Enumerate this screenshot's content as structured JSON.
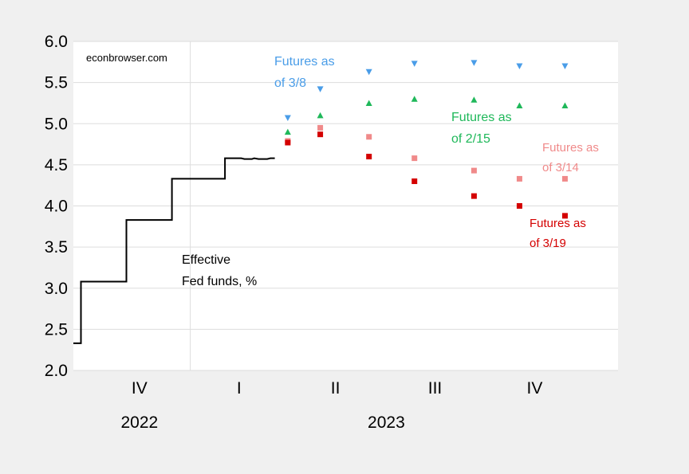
{
  "chart_data": {
    "type": "scatter",
    "title": "",
    "xlabel": "",
    "ylabel": "",
    "ylim": [
      2.0,
      6.0
    ],
    "yticks": [
      "2.0",
      "2.5",
      "3.0",
      "3.5",
      "4.0",
      "4.5",
      "5.0",
      "5.5",
      "6.0"
    ],
    "xlim": [
      "2022-09-15",
      "2024-01-31"
    ],
    "quarter_ticks": [
      {
        "label": "IV",
        "x": "2022-11-15"
      },
      {
        "label": "I",
        "x": "2023-02-15"
      },
      {
        "label": "II",
        "x": "2023-05-15"
      },
      {
        "label": "III",
        "x": "2023-08-15"
      },
      {
        "label": "IV",
        "x": "2023-11-15"
      }
    ],
    "year_labels": [
      {
        "label": "2022",
        "x": "2022-11-15"
      },
      {
        "label": "2023",
        "x": "2023-07-01"
      }
    ],
    "gridlines": true,
    "colors": {
      "effective": "#000000",
      "futures_3_8": "#4a9de8",
      "futures_2_15": "#1fb85a",
      "futures_3_14": "#f08a8a",
      "futures_3_19": "#d40000",
      "grid": "#dddddd",
      "plot_bg": "#ffffff",
      "page_bg": "#f0f0f0"
    },
    "source_note": "econbrowser.com",
    "effective_fed_funds": {
      "name": [
        "Effective",
        "Fed funds, %"
      ],
      "points": [
        [
          "2022-09-15",
          2.33
        ],
        [
          "2022-09-22",
          2.33
        ],
        [
          "2022-09-22",
          3.08
        ],
        [
          "2022-11-03",
          3.08
        ],
        [
          "2022-11-03",
          3.83
        ],
        [
          "2022-12-15",
          3.83
        ],
        [
          "2022-12-15",
          4.33
        ],
        [
          "2023-02-02",
          4.33
        ],
        [
          "2023-02-02",
          4.58
        ],
        [
          "2023-02-17",
          4.58
        ],
        [
          "2023-02-20",
          4.57
        ],
        [
          "2023-02-27",
          4.57
        ],
        [
          "2023-03-01",
          4.58
        ],
        [
          "2023-03-05",
          4.57
        ],
        [
          "2023-03-13",
          4.57
        ],
        [
          "2023-03-16",
          4.58
        ],
        [
          "2023-03-20",
          4.58
        ]
      ]
    },
    "futures": [
      {
        "name": [
          "Futures as",
          "of 3/8"
        ],
        "marker": "triangle-down",
        "x": [
          "2023-04-01",
          "2023-05-01",
          "2023-06-15",
          "2023-07-27",
          "2023-09-20",
          "2023-11-01",
          "2023-12-13"
        ],
        "y": [
          5.07,
          5.42,
          5.63,
          5.73,
          5.74,
          5.7,
          5.7
        ]
      },
      {
        "name": [
          "Futures as",
          "of 2/15"
        ],
        "marker": "triangle-up",
        "x": [
          "2023-04-01",
          "2023-05-01",
          "2023-06-15",
          "2023-07-27",
          "2023-09-20",
          "2023-11-01",
          "2023-12-13"
        ],
        "y": [
          4.9,
          5.1,
          5.25,
          5.3,
          5.29,
          5.22,
          5.22
        ]
      },
      {
        "name": [
          "Futures as",
          "of 3/14"
        ],
        "marker": "square",
        "x": [
          "2023-04-01",
          "2023-05-01",
          "2023-06-15",
          "2023-07-27",
          "2023-09-20",
          "2023-11-01",
          "2023-12-13"
        ],
        "y": [
          4.79,
          4.95,
          4.84,
          4.58,
          4.43,
          4.33,
          4.33
        ]
      },
      {
        "name": [
          "Futures as",
          "of 3/19"
        ],
        "marker": "square",
        "x": [
          "2023-04-01",
          "2023-05-01",
          "2023-06-15",
          "2023-07-27",
          "2023-09-20",
          "2023-11-01",
          "2023-12-13"
        ],
        "y": [
          4.77,
          4.87,
          4.6,
          4.3,
          4.12,
          4.0,
          3.88
        ]
      }
    ]
  }
}
